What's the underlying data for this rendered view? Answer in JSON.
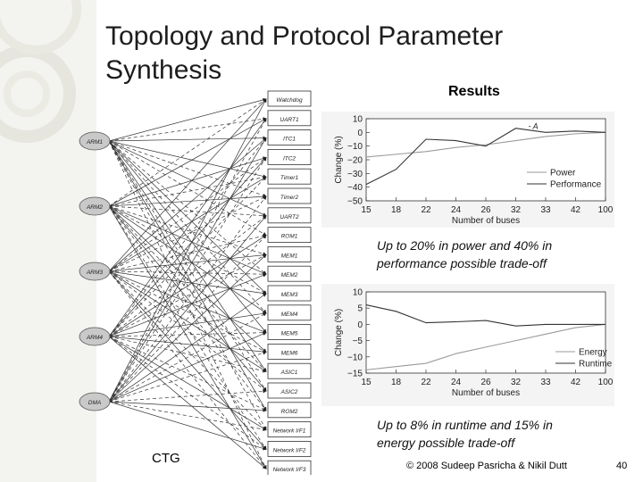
{
  "slide": {
    "title_line1": "Topology and Protocol Parameter",
    "title_line2": "Synthesis",
    "results_label": "Results",
    "caption1_line1": "Up to 20% in power and 40% in",
    "caption1_line2": "performance possible trade-off",
    "caption2_line1": "Up to 8% in runtime and 15% in",
    "caption2_line2": "energy possible trade-off",
    "ctg_label": "CTG",
    "footer": "© 2008 Sudeep Pasricha & Nikil Dutt",
    "page_number": "40",
    "accent_color": "#e8e8e0"
  },
  "ctg": {
    "masters": [
      "ARM1",
      "ARM2",
      "ARM3",
      "ARM4",
      "DMA"
    ],
    "slaves": [
      "Watchdog",
      "UART1",
      "ITC1",
      "ITC2",
      "Timer1",
      "Timer2",
      "UART2",
      "ROM1",
      "MEM1",
      "MEM2",
      "MEM3",
      "MEM4",
      "MEM5",
      "MEM6",
      "ASIC1",
      "ASIC2",
      "ROM2",
      "Network I/F1",
      "Network I/F2",
      "Network I/F3"
    ]
  },
  "chart_data": [
    {
      "type": "line",
      "categories": [
        "15",
        "18",
        "22",
        "24",
        "26",
        "32",
        "33",
        "42",
        "100"
      ],
      "xlabel": "Number of buses",
      "ylabel": "Change (%)",
      "ylim": [
        -50,
        10
      ],
      "yticks": [
        "10",
        "0",
        "−10",
        "−20",
        "−30",
        "−40",
        "−50"
      ],
      "annotation": "A",
      "legend_position": "bottom-right",
      "series": [
        {
          "name": "Power",
          "values": [
            -18,
            -16,
            -14,
            -11,
            -9,
            -6,
            -3,
            -1,
            0
          ]
        },
        {
          "name": "Performance",
          "values": [
            -38,
            -27,
            -5,
            -6,
            -10,
            3,
            0,
            1,
            0
          ]
        }
      ]
    },
    {
      "type": "line",
      "categories": [
        "15",
        "18",
        "22",
        "24",
        "26",
        "32",
        "33",
        "42",
        "100"
      ],
      "xlabel": "Number of buses",
      "ylabel": "Change (%)",
      "ylim": [
        -15,
        10
      ],
      "yticks": [
        "10",
        "5",
        "0",
        "−5",
        "−10",
        "−15"
      ],
      "legend_position": "bottom-right",
      "series": [
        {
          "name": "Energy",
          "values": [
            -14,
            -13,
            -12,
            -9,
            -7,
            -5,
            -3,
            -1,
            0
          ]
        },
        {
          "name": "Runtime",
          "values": [
            6,
            4,
            0.5,
            0.8,
            1.2,
            -0.5,
            0,
            0,
            0
          ]
        }
      ]
    }
  ]
}
